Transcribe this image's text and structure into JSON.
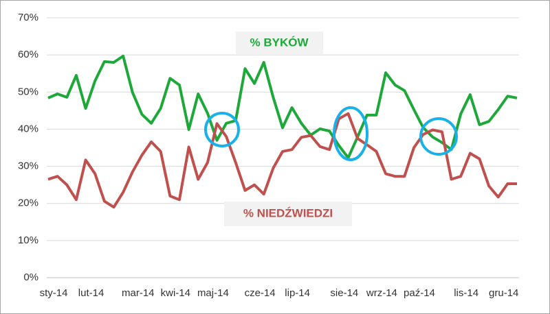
{
  "chart_data": {
    "type": "line",
    "categories": [
      "sty-14",
      null,
      null,
      null,
      "lut-14",
      null,
      null,
      null,
      null,
      "mar-14",
      null,
      null,
      null,
      "kwi-14",
      null,
      null,
      null,
      "maj-14",
      null,
      null,
      null,
      null,
      "cze-14",
      null,
      null,
      null,
      "lip-14",
      null,
      null,
      null,
      null,
      "sie-14",
      null,
      null,
      null,
      "wrz-14",
      null,
      null,
      null,
      "paź-14",
      null,
      null,
      null,
      null,
      "lis-14",
      null,
      null,
      null,
      "gru-14",
      null,
      null
    ],
    "series": [
      {
        "name": "% BYKÓW",
        "color": "#1fa83a",
        "values": [
          48.4,
          49.5,
          48.6,
          54.5,
          45.6,
          53,
          58.2,
          58,
          59.7,
          49.9,
          44,
          41.6,
          45.6,
          53.7,
          51.9,
          39.9,
          49.5,
          44.3,
          37,
          41.6,
          42.3,
          56.3,
          52.3,
          58,
          48.6,
          40.4,
          45.8,
          41.6,
          38.4,
          40.1,
          39.5,
          35.6,
          32.3,
          37.9,
          43.8,
          43.8,
          55.2,
          51.9,
          50.4,
          45.3,
          40.4,
          37.9,
          36.4,
          34.5,
          44.1,
          49.3,
          41.2,
          42.1,
          45.3,
          48.9,
          48.4
        ]
      },
      {
        "name": "% NIEDŹWIEDZI",
        "color": "#c0504d",
        "values": [
          26.5,
          27.3,
          25,
          21,
          31.7,
          28,
          20.6,
          19,
          23,
          28.5,
          33,
          36.6,
          34,
          22,
          21,
          35.2,
          26.5,
          31,
          41.5,
          38,
          31,
          23.5,
          25,
          22.5,
          29.5,
          34,
          34.5,
          37.8,
          38.3,
          35.3,
          34.5,
          42.8,
          44.2,
          37.5,
          35.8,
          34,
          28,
          27.3,
          27.3,
          35,
          38.6,
          39.8,
          39.3,
          26.5,
          27.3,
          33.5,
          32,
          24.7,
          21.7,
          25.3,
          25.3
        ]
      }
    ],
    "ylim": [
      0,
      70
    ],
    "yticks": [
      {
        "value": 0,
        "label": "0%"
      },
      {
        "value": 10,
        "label": "10%"
      },
      {
        "value": 20,
        "label": "20%"
      },
      {
        "value": 30,
        "label": "30%"
      },
      {
        "value": 40,
        "label": "40%"
      },
      {
        "value": 50,
        "label": "50%"
      },
      {
        "value": 60,
        "label": "60%"
      },
      {
        "value": 70,
        "label": "70%"
      }
    ],
    "grid": true
  }
}
